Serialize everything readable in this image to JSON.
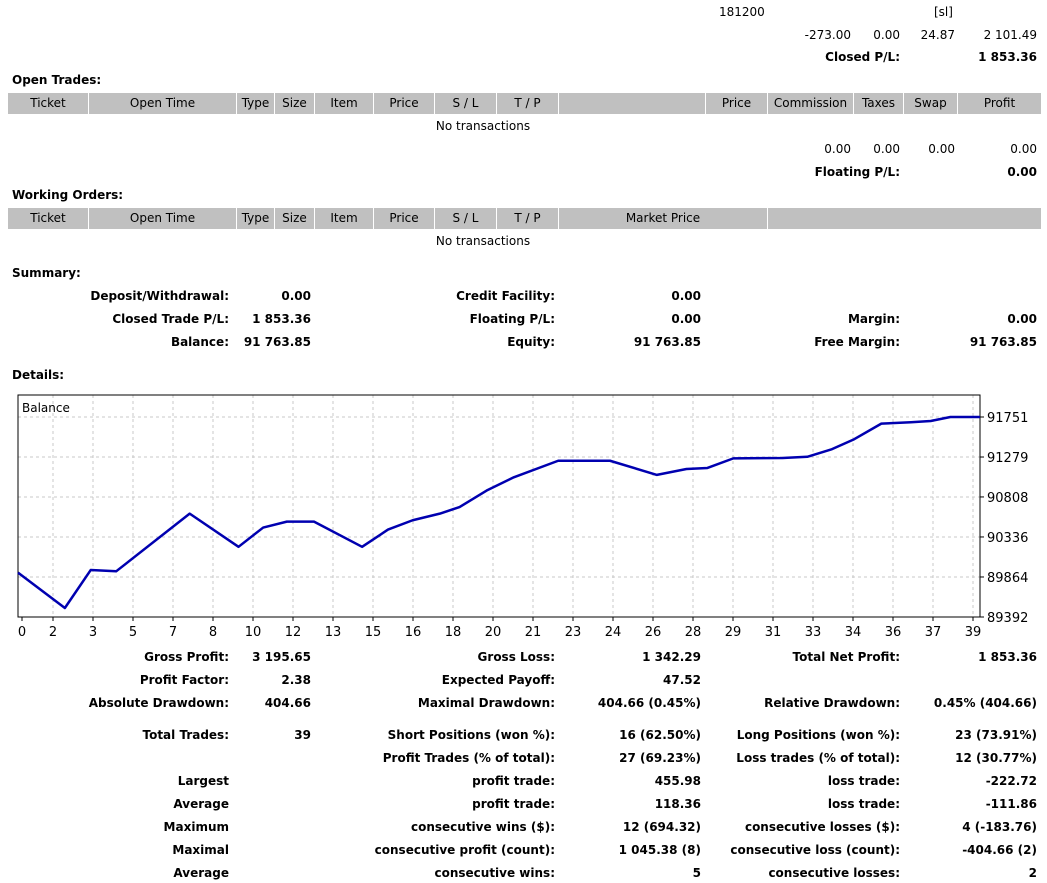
{
  "closed_section": {
    "row1": [
      "181200",
      "[sl]"
    ],
    "row2": [
      "-273.00",
      "0.00",
      "24.87",
      "2 101.49"
    ],
    "closed_pl_label": "Closed P/L:",
    "closed_pl_value": "1 853.36"
  },
  "open_trades": {
    "title": "Open Trades:",
    "columns": [
      "Ticket",
      "Open Time",
      "Type",
      "Size",
      "Item",
      "Price",
      "S / L",
      "T / P",
      "",
      "Price",
      "Commission",
      "Taxes",
      "Swap",
      "Profit"
    ],
    "empty_text": "No transactions",
    "totals": [
      "0.00",
      "0.00",
      "0.00",
      "0.00"
    ],
    "floating_pl_label": "Floating P/L:",
    "floating_pl_value": "0.00"
  },
  "working_orders": {
    "title": "Working Orders:",
    "columns": [
      "Ticket",
      "Open Time",
      "Type",
      "Size",
      "Item",
      "Price",
      "S / L",
      "T / P",
      "Market Price",
      ""
    ],
    "empty_text": "No transactions"
  },
  "summary": {
    "title": "Summary:",
    "rows": [
      [
        "Deposit/Withdrawal:",
        "0.00",
        "Credit Facility:",
        "0.00",
        "",
        ""
      ],
      [
        "Closed Trade P/L:",
        "1 853.36",
        "Floating P/L:",
        "0.00",
        "Margin:",
        "0.00"
      ],
      [
        "Balance:",
        "91 763.85",
        "Equity:",
        "91 763.85",
        "Free Margin:",
        "91 763.85"
      ]
    ]
  },
  "details": {
    "title": "Details:",
    "rows": [
      [
        "Gross Profit:",
        "3 195.65",
        "Gross Loss:",
        "1 342.29",
        "Total Net Profit:",
        "1 853.36"
      ],
      [
        "Profit Factor:",
        "2.38",
        "Expected Payoff:",
        "47.52",
        "",
        ""
      ],
      [
        "Absolute Drawdown:",
        "404.66",
        "Maximal Drawdown:",
        "404.66 (0.45%)",
        "Relative Drawdown:",
        "0.45% (404.66)"
      ],
      [
        "Total Trades:",
        "39",
        "Short Positions (won %):",
        "16 (62.50%)",
        "Long Positions (won %):",
        "23 (73.91%)"
      ],
      [
        "",
        "",
        "Profit Trades (% of total):",
        "27 (69.23%)",
        "Loss trades (% of total):",
        "12 (30.77%)"
      ],
      [
        "Largest",
        "",
        "profit trade:",
        "455.98",
        "loss trade:",
        "-222.72"
      ],
      [
        "Average",
        "",
        "profit trade:",
        "118.36",
        "loss trade:",
        "-111.86"
      ],
      [
        "Maximum",
        "",
        "consecutive wins ($):",
        "12 (694.32)",
        "consecutive losses ($):",
        "4 (-183.76)"
      ],
      [
        "Maximal",
        "",
        "consecutive profit (count):",
        "1 045.38 (8)",
        "consecutive loss (count):",
        "-404.66 (2)"
      ],
      [
        "Average",
        "",
        "consecutive wins:",
        "5",
        "consecutive losses:",
        "2"
      ]
    ]
  },
  "chart_data": {
    "type": "line",
    "title": "Balance",
    "series": [
      {
        "name": "Balance",
        "color": "#0000b0",
        "points": [
          [
            0,
            89915
          ],
          [
            1.9,
            89498
          ],
          [
            2.95,
            89947
          ],
          [
            3.98,
            89931
          ],
          [
            6.96,
            90611
          ],
          [
            8.94,
            90220
          ],
          [
            9.94,
            90447
          ],
          [
            10.9,
            90517
          ],
          [
            12,
            90517
          ],
          [
            13.95,
            90220
          ],
          [
            15,
            90423
          ],
          [
            16,
            90533
          ],
          [
            17.1,
            90611
          ],
          [
            17.9,
            90689
          ],
          [
            19,
            90884
          ],
          [
            20.1,
            91040
          ],
          [
            21.9,
            91235
          ],
          [
            24,
            91235
          ],
          [
            25.9,
            91068
          ],
          [
            27.1,
            91138
          ],
          [
            27.95,
            91150
          ],
          [
            29,
            91263
          ],
          [
            31,
            91267
          ],
          [
            32,
            91282
          ],
          [
            33,
            91372
          ],
          [
            33.9,
            91489
          ],
          [
            35,
            91673
          ],
          [
            36.2,
            91689
          ],
          [
            37,
            91704
          ],
          [
            37.8,
            91751
          ],
          [
            39,
            91751
          ]
        ]
      }
    ],
    "x_ticks": [
      "0",
      "2",
      "3",
      "5",
      "7",
      "8",
      "10",
      "12",
      "13",
      "15",
      "16",
      "18",
      "20",
      "21",
      "23",
      "24",
      "26",
      "28",
      "29",
      "31",
      "33",
      "34",
      "36",
      "37",
      "39"
    ],
    "y_ticks": [
      "91751",
      "91279",
      "90808",
      "90336",
      "89864",
      "89392"
    ],
    "xlim": [
      0,
      39
    ],
    "ylim": [
      89392,
      91751
    ],
    "grid": true
  }
}
